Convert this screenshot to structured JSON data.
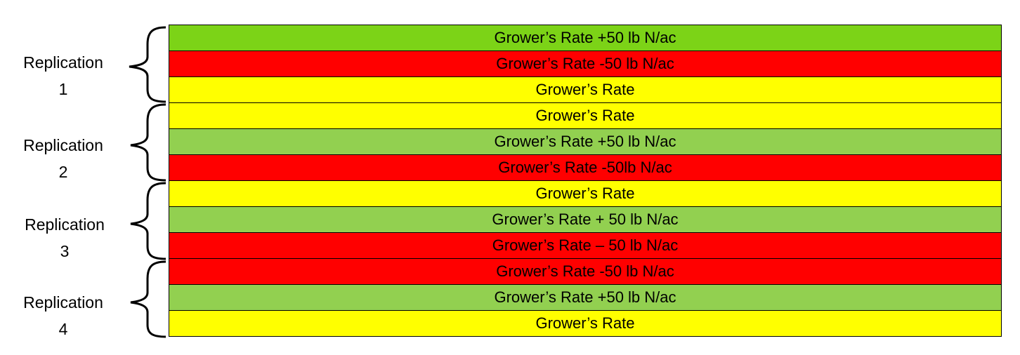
{
  "replications": [
    {
      "label_line1": "Replication",
      "label_line2": "1",
      "strips": [
        {
          "text": "Grower’s Rate +50 lb N/ac",
          "color": "#7cd317"
        },
        {
          "text": "Grower’s Rate -50 lb N/ac",
          "color": "#ff0000"
        },
        {
          "text": "Grower’s Rate",
          "color": "#ffff00"
        }
      ]
    },
    {
      "label_line1": "Replication",
      "label_line2": "2",
      "strips": [
        {
          "text": "Grower’s Rate",
          "color": "#ffff00"
        },
        {
          "text": "Grower’s Rate +50 lb N/ac",
          "color": "#92d050"
        },
        {
          "text": "Grower’s Rate -50lb N/ac",
          "color": "#ff0000"
        }
      ]
    },
    {
      "label_line1": "Replication",
      "label_line2": "3",
      "strips": [
        {
          "text": "Grower’s Rate",
          "color": "#ffff00"
        },
        {
          "text": "Grower’s Rate + 50 lb N/ac",
          "color": "#92d050"
        },
        {
          "text": "Grower’s Rate – 50 lb N/ac",
          "color": "#ff0000"
        }
      ]
    },
    {
      "label_line1": "Replication",
      "label_line2": "4",
      "strips": [
        {
          "text": "Grower’s Rate -50 lb N/ac",
          "color": "#ff0000"
        },
        {
          "text": "Grower’s Rate +50 lb N/ac",
          "color": "#92d050"
        },
        {
          "text": "Grower’s Rate",
          "color": "#ffff00"
        }
      ]
    }
  ]
}
